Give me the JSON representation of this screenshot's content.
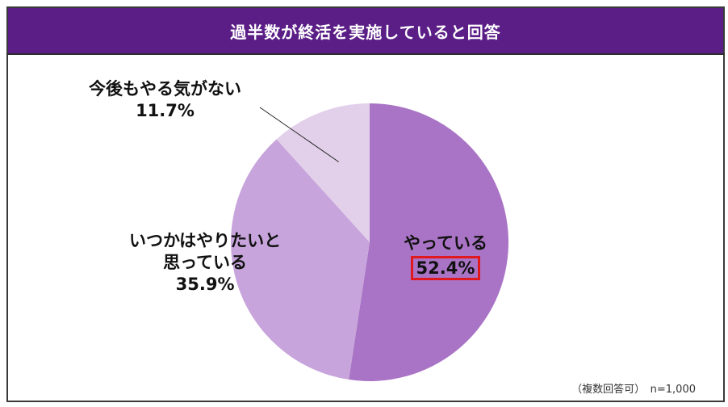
{
  "title": "過半数が終活を実施していると回答",
  "note": "（複数回答可）　n=1,000",
  "colors": {
    "title_bg": "#5a1e86",
    "title_rule": "#2e2e2e",
    "slice_doing": "#a974c5",
    "slice_someday": "#c7a4db",
    "slice_never": "#e2d0ea",
    "highlight_box": "#e0191f"
  },
  "chart_data": {
    "type": "pie",
    "title": "過半数が終活を実施していると回答",
    "unit": "%",
    "n": "1,000",
    "slices": [
      {
        "label": "やっている",
        "value": 52.4,
        "value_text": "52.4%",
        "color": "#a974c5",
        "highlighted": true
      },
      {
        "label": "いつかはやりたいと思っている",
        "value": 35.9,
        "value_text": "35.9%",
        "color": "#c7a4db"
      },
      {
        "label": "今後もやる気がない",
        "value": 11.7,
        "value_text": "11.7%",
        "color": "#e2d0ea"
      }
    ],
    "label_lines": {
      "doing": "やっている",
      "someday_1": "いつかはやりたいと",
      "someday_2": "思っている",
      "never": "今後もやる気がない"
    },
    "start_angle_deg": 0,
    "direction": "clockwise",
    "legend": "none"
  }
}
